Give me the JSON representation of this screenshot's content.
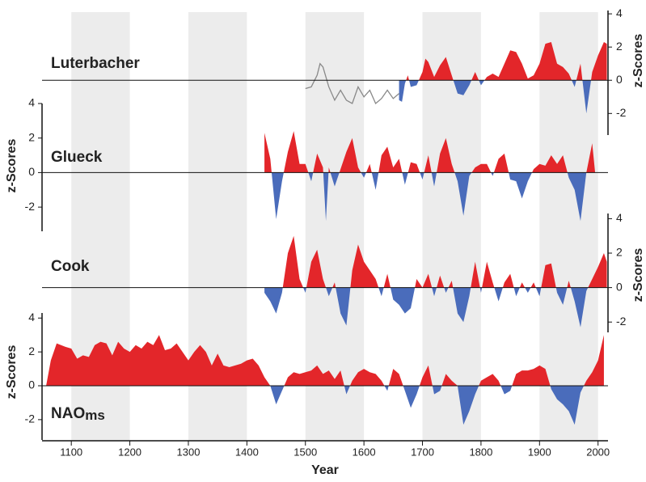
{
  "chart_data": [
    {
      "type": "area",
      "label": "Luterbacher",
      "ylabel": "z-Scores",
      "axis_side": "right",
      "xlim": [
        1050,
        2017
      ],
      "ylim": [
        -3.3,
        4.2
      ],
      "yticks": [
        4,
        2,
        0,
        -2
      ],
      "colors": {
        "positive": "#e3262a",
        "negative": "#4a6cbb"
      },
      "x": [
        1660,
        1665,
        1670,
        1675,
        1680,
        1690,
        1700,
        1705,
        1710,
        1720,
        1730,
        1740,
        1750,
        1760,
        1770,
        1780,
        1790,
        1800,
        1810,
        1820,
        1830,
        1840,
        1850,
        1860,
        1870,
        1880,
        1890,
        1900,
        1910,
        1920,
        1930,
        1940,
        1950,
        1960,
        1970,
        1980,
        1990,
        2000,
        2010,
        2015
      ],
      "values": [
        -1.2,
        -1.3,
        -0.2,
        0.3,
        -0.4,
        -0.3,
        0.5,
        1.3,
        1.1,
        0.2,
        0.9,
        1.4,
        0.3,
        -0.8,
        -0.9,
        -0.3,
        0.5,
        -0.3,
        0.2,
        0.4,
        0.2,
        1.0,
        1.8,
        1.7,
        1.0,
        0.1,
        0.3,
        1.0,
        2.2,
        2.3,
        1.0,
        0.8,
        0.4,
        -0.4,
        1.0,
        -2.0,
        0.5,
        1.5,
        2.3,
        2.2
      ],
      "line": {
        "color": "#888888",
        "x": [
          1500,
          1510,
          1520,
          1525,
          1530,
          1540,
          1550,
          1560,
          1570,
          1580,
          1590,
          1600,
          1610,
          1620,
          1630,
          1640,
          1650,
          1660
        ],
        "values": [
          -0.5,
          -0.4,
          0.3,
          1.0,
          0.8,
          -0.4,
          -1.2,
          -0.6,
          -1.2,
          -1.4,
          -0.4,
          -1.0,
          -0.6,
          -1.4,
          -1.1,
          -0.6,
          -1.1,
          -0.8
        ]
      }
    },
    {
      "type": "area",
      "label": "Glueck",
      "ylabel": "z-Scores",
      "axis_side": "left",
      "xlim": [
        1050,
        2017
      ],
      "ylim": [
        -3.4,
        4
      ],
      "yticks": [
        4,
        2,
        0,
        -2
      ],
      "colors": {
        "positive": "#e3262a",
        "negative": "#4a6cbb"
      },
      "x": [
        1430,
        1440,
        1450,
        1460,
        1470,
        1480,
        1490,
        1500,
        1510,
        1520,
        1530,
        1535,
        1540,
        1550,
        1560,
        1570,
        1580,
        1590,
        1600,
        1610,
        1620,
        1630,
        1640,
        1650,
        1660,
        1670,
        1680,
        1690,
        1700,
        1710,
        1720,
        1730,
        1740,
        1750,
        1760,
        1770,
        1780,
        1790,
        1800,
        1810,
        1820,
        1830,
        1840,
        1850,
        1860,
        1870,
        1880,
        1890,
        1900,
        1910,
        1920,
        1930,
        1940,
        1950,
        1960,
        1970,
        1980,
        1990,
        1995
      ],
      "values": [
        2.3,
        0.8,
        -2.7,
        -0.5,
        1.2,
        2.4,
        0.5,
        0.5,
        -0.5,
        1.1,
        0.3,
        -2.8,
        0.3,
        -0.8,
        0.2,
        1.2,
        2.0,
        0.3,
        -0.3,
        0.5,
        -1.0,
        1.0,
        1.5,
        0.3,
        0.8,
        -0.7,
        0.6,
        0.5,
        -0.4,
        1.0,
        -0.8,
        1.1,
        2.0,
        0.5,
        -0.5,
        -2.5,
        -0.2,
        0.3,
        0.5,
        0.5,
        -0.2,
        0.8,
        1.1,
        -0.4,
        -0.5,
        -1.5,
        -0.5,
        0.2,
        0.5,
        0.4,
        1.0,
        0.5,
        1.0,
        -0.3,
        -1.0,
        -2.8,
        0.0,
        1.7,
        0.0
      ]
    },
    {
      "type": "area",
      "label": "Cook",
      "ylabel": "z-Scores",
      "axis_side": "right",
      "xlim": [
        1050,
        2017
      ],
      "ylim": [
        -2.6,
        4.3
      ],
      "yticks": [
        4,
        2,
        0,
        -2
      ],
      "colors": {
        "positive": "#e3262a",
        "negative": "#4a6cbb"
      },
      "x": [
        1430,
        1440,
        1450,
        1460,
        1470,
        1480,
        1490,
        1500,
        1510,
        1520,
        1530,
        1540,
        1550,
        1560,
        1570,
        1580,
        1590,
        1600,
        1610,
        1620,
        1630,
        1640,
        1650,
        1660,
        1670,
        1680,
        1690,
        1700,
        1710,
        1720,
        1730,
        1740,
        1750,
        1760,
        1770,
        1780,
        1790,
        1800,
        1810,
        1820,
        1830,
        1840,
        1850,
        1860,
        1870,
        1880,
        1890,
        1900,
        1910,
        1920,
        1930,
        1940,
        1950,
        1960,
        1970,
        1980,
        1990,
        2000,
        2010,
        2015
      ],
      "values": [
        -0.3,
        -0.8,
        -1.5,
        -0.3,
        2.0,
        3.0,
        0.5,
        -0.3,
        1.5,
        2.2,
        0.5,
        -0.5,
        0.3,
        -1.5,
        -2.2,
        1.0,
        2.5,
        1.5,
        1.0,
        0.5,
        -0.5,
        0.8,
        -0.7,
        -1.0,
        -1.5,
        -1.2,
        0.5,
        0.0,
        0.8,
        -0.5,
        0.7,
        -0.3,
        0.4,
        -1.5,
        -2.0,
        -0.5,
        1.5,
        -0.3,
        1.5,
        0.3,
        -0.8,
        0.3,
        0.8,
        -0.5,
        0.3,
        -0.3,
        0.3,
        -0.5,
        1.3,
        1.4,
        -0.3,
        -1.0,
        0.4,
        -0.8,
        -2.3,
        -0.2,
        0.5,
        1.2,
        2.0,
        1.5
      ]
    },
    {
      "type": "area",
      "label": "NAO",
      "label_sub": "ms",
      "ylabel": "z-Scores",
      "axis_side": "left",
      "xlabel": "Year",
      "xlim": [
        1050,
        2017
      ],
      "xticks": [
        1100,
        1200,
        1300,
        1400,
        1500,
        1600,
        1700,
        1800,
        1900,
        2000
      ],
      "ylim": [
        -3.2,
        4.3
      ],
      "yticks": [
        4,
        2,
        0,
        -2
      ],
      "colors": {
        "positive": "#e3262a",
        "negative": "#4a6cbb"
      },
      "x": [
        1057,
        1065,
        1075,
        1090,
        1100,
        1110,
        1120,
        1130,
        1140,
        1150,
        1160,
        1170,
        1180,
        1190,
        1200,
        1210,
        1220,
        1230,
        1240,
        1250,
        1260,
        1270,
        1280,
        1290,
        1300,
        1310,
        1320,
        1330,
        1340,
        1350,
        1360,
        1370,
        1380,
        1390,
        1400,
        1410,
        1420,
        1430,
        1440,
        1450,
        1460,
        1470,
        1480,
        1490,
        1500,
        1510,
        1520,
        1530,
        1540,
        1550,
        1560,
        1570,
        1580,
        1590,
        1600,
        1610,
        1620,
        1630,
        1640,
        1650,
        1660,
        1670,
        1680,
        1690,
        1700,
        1710,
        1720,
        1730,
        1740,
        1750,
        1760,
        1770,
        1780,
        1790,
        1800,
        1810,
        1820,
        1830,
        1840,
        1850,
        1860,
        1870,
        1880,
        1890,
        1900,
        1910,
        1920,
        1930,
        1940,
        1950,
        1960,
        1970,
        1980,
        1990,
        2000,
        2010
      ],
      "values": [
        0,
        1.5,
        2.5,
        2.3,
        2.2,
        1.6,
        1.8,
        1.7,
        2.4,
        2.6,
        2.5,
        1.8,
        2.6,
        2.2,
        2.0,
        2.4,
        2.2,
        2.6,
        2.4,
        3.0,
        2.1,
        2.2,
        2.5,
        2.0,
        1.5,
        2.0,
        2.4,
        2.0,
        1.2,
        1.9,
        1.2,
        1.1,
        1.2,
        1.3,
        1.5,
        1.6,
        1.2,
        0.5,
        0.0,
        -1.1,
        -0.3,
        0.5,
        0.8,
        0.7,
        0.8,
        0.9,
        1.2,
        0.7,
        0.9,
        0.4,
        0.9,
        -0.5,
        0.3,
        0.8,
        1.0,
        0.8,
        0.7,
        0.3,
        -0.3,
        1.0,
        0.7,
        -0.3,
        -1.3,
        -0.5,
        0.5,
        1.2,
        -0.5,
        -0.3,
        0.7,
        0.3,
        0.0,
        -2.3,
        -1.5,
        -0.5,
        0.3,
        0.5,
        0.7,
        0.3,
        -0.5,
        -0.3,
        0.7,
        0.9,
        0.9,
        1.0,
        1.2,
        1.0,
        -0.2,
        -0.8,
        -1.1,
        -1.5,
        -2.3,
        -0.4,
        0.3,
        0.8,
        1.5,
        3.0
      ]
    }
  ]
}
